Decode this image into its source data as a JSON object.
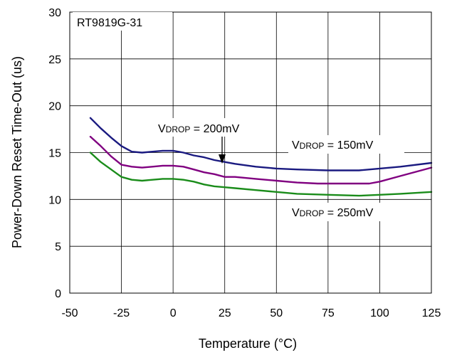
{
  "chart_data": {
    "type": "line",
    "title": "",
    "xlabel": "Temperature (°C)",
    "ylabel": "Power-Down Reset Time-Out (us)",
    "xlim": [
      -50,
      125
    ],
    "ylim": [
      0,
      30
    ],
    "xticks": [
      "-50",
      "-25",
      "0",
      "25",
      "50",
      "75",
      "100",
      "125"
    ],
    "yticks": [
      "0",
      "5",
      "10",
      "15",
      "20",
      "25",
      "30"
    ],
    "grid": true,
    "legend": "none",
    "inset_label": "RT9819G-31",
    "annotations": [
      {
        "prefix": "V",
        "sub": "DROP",
        "suffix": " = 200mV"
      },
      {
        "prefix": "V",
        "sub": "DROP",
        "suffix": " = 150mV"
      },
      {
        "prefix": "V",
        "sub": "DROP",
        "suffix": " = 250mV"
      }
    ],
    "series": [
      {
        "color": "#1a1a80",
        "x": [
          -40,
          -35,
          -30,
          -25,
          -20,
          -15,
          -10,
          -5,
          0,
          5,
          10,
          15,
          20,
          25,
          30,
          40,
          50,
          60,
          75,
          90,
          100,
          110,
          125
        ],
        "y": [
          18.7,
          17.6,
          16.6,
          15.7,
          15.1,
          15.0,
          15.1,
          15.2,
          15.2,
          15.0,
          14.7,
          14.5,
          14.2,
          14.0,
          13.8,
          13.5,
          13.3,
          13.2,
          13.1,
          13.1,
          13.3,
          13.5,
          13.9
        ]
      },
      {
        "color": "#800080",
        "x": [
          -40,
          -35,
          -30,
          -25,
          -20,
          -15,
          -10,
          -5,
          0,
          5,
          10,
          15,
          20,
          25,
          30,
          40,
          50,
          60,
          70,
          80,
          95,
          100,
          110,
          125
        ],
        "y": [
          16.7,
          15.7,
          14.6,
          13.7,
          13.5,
          13.4,
          13.5,
          13.6,
          13.6,
          13.5,
          13.2,
          12.9,
          12.7,
          12.4,
          12.4,
          12.2,
          12.0,
          11.8,
          11.7,
          11.7,
          11.7,
          11.9,
          12.5,
          13.4
        ]
      },
      {
        "color": "#1a8c1a",
        "x": [
          -40,
          -35,
          -30,
          -25,
          -20,
          -15,
          -10,
          -5,
          0,
          5,
          10,
          15,
          20,
          25,
          30,
          40,
          50,
          60,
          75,
          90,
          100,
          110,
          125
        ],
        "y": [
          15.0,
          14.0,
          13.2,
          12.4,
          12.1,
          12.0,
          12.1,
          12.2,
          12.2,
          12.1,
          11.9,
          11.6,
          11.4,
          11.3,
          11.2,
          11.0,
          10.8,
          10.6,
          10.5,
          10.4,
          10.5,
          10.6,
          10.8
        ]
      }
    ]
  }
}
